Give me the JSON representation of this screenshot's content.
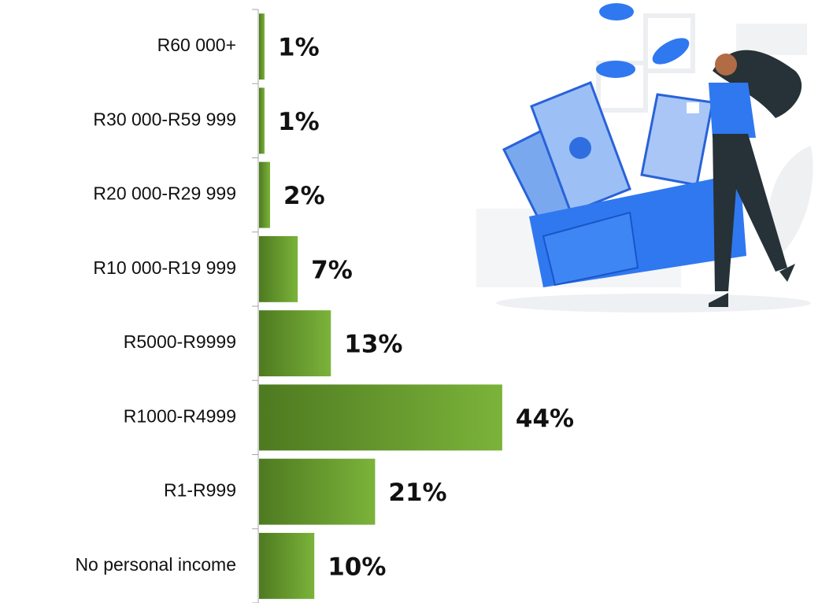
{
  "chart_data": {
    "type": "bar",
    "orientation": "horizontal",
    "categories": [
      "R60 000+",
      "R30 000-R59 999",
      "R20 000-R29 999",
      "R10 000-R19 999",
      "R5000-R9999",
      "R1000-R4999",
      "R1-R999",
      "No personal income"
    ],
    "values": [
      1,
      1,
      2,
      7,
      13,
      44,
      21,
      10
    ],
    "value_labels": [
      "1%",
      "1%",
      "2%",
      "7%",
      "13%",
      "44%",
      "21%",
      "10%"
    ],
    "color": "#6a9b2c"
  }
}
